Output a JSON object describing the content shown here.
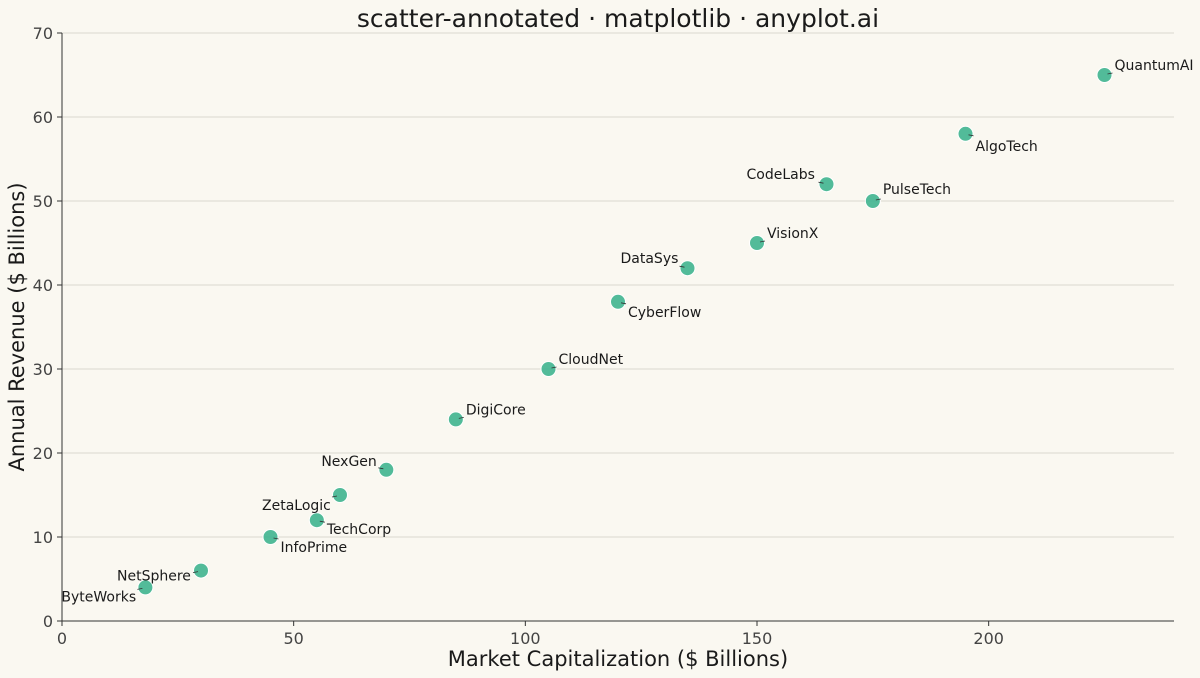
{
  "chart_data": {
    "type": "scatter",
    "title": "scatter-annotated · matplotlib · anyplot.ai",
    "xlabel": "Market Capitalization ($ Billions)",
    "ylabel": "Annual Revenue ($ Billions)",
    "xlim": [
      0,
      240
    ],
    "ylim": [
      0,
      70
    ],
    "x_ticks": [
      0,
      50,
      100,
      150,
      200
    ],
    "y_ticks": [
      0,
      10,
      20,
      30,
      40,
      50,
      60,
      70
    ],
    "grid": "horizontal",
    "legend": "none",
    "point_color": "#3fb48f",
    "points": [
      {
        "label": "ByteWorks",
        "x": 18,
        "y": 4
      },
      {
        "label": "NetSphere",
        "x": 30,
        "y": 6
      },
      {
        "label": "InfoPrime",
        "x": 45,
        "y": 10
      },
      {
        "label": "TechCorp",
        "x": 55,
        "y": 12
      },
      {
        "label": "ZetaLogic",
        "x": 60,
        "y": 15
      },
      {
        "label": "NexGen",
        "x": 70,
        "y": 18
      },
      {
        "label": "DigiCore",
        "x": 85,
        "y": 24
      },
      {
        "label": "CloudNet",
        "x": 105,
        "y": 30
      },
      {
        "label": "CyberFlow",
        "x": 120,
        "y": 38
      },
      {
        "label": "DataSys",
        "x": 135,
        "y": 42
      },
      {
        "label": "VisionX",
        "x": 150,
        "y": 45
      },
      {
        "label": "CodeLabs",
        "x": 165,
        "y": 52
      },
      {
        "label": "PulseTech",
        "x": 175,
        "y": 50
      },
      {
        "label": "AlgoTech",
        "x": 195,
        "y": 58
      },
      {
        "label": "QuantumAI",
        "x": 225,
        "y": 65
      }
    ]
  }
}
